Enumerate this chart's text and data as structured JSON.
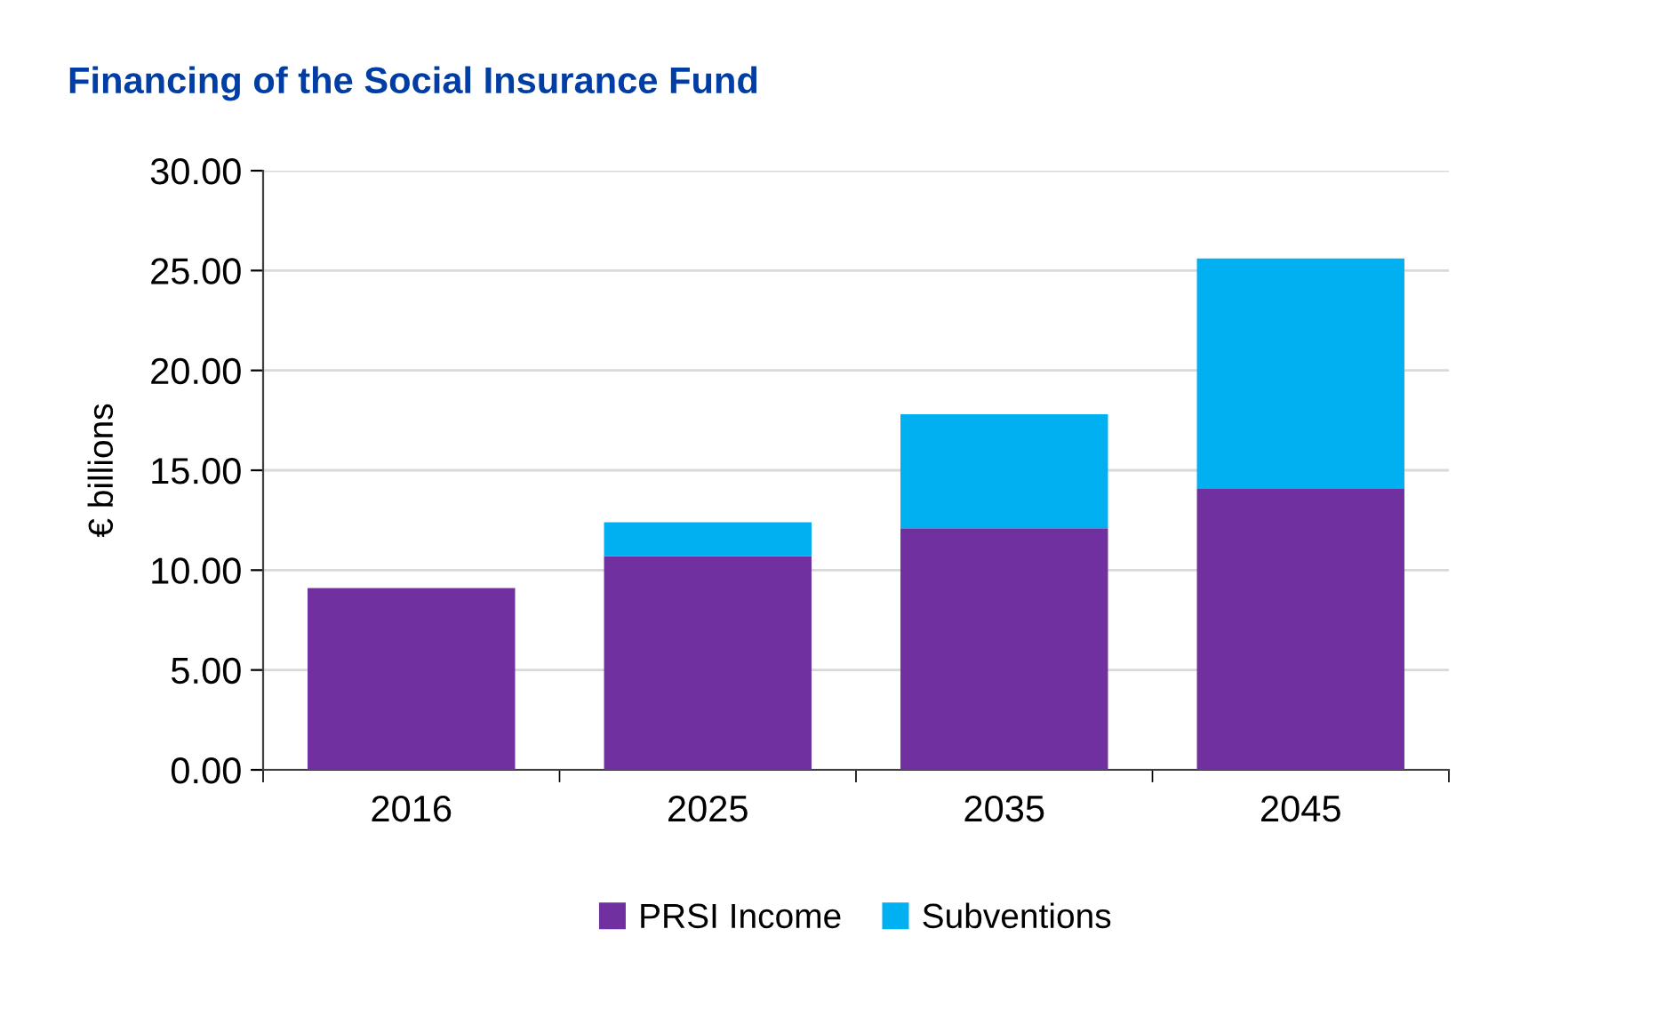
{
  "chart_data": {
    "type": "bar",
    "stacked": true,
    "title": "Financing of the Social Insurance Fund",
    "ylabel": "€ billions",
    "categories": [
      "2016",
      "2025",
      "2035",
      "2045"
    ],
    "series": [
      {
        "name": "PRSI Income",
        "color": "#7030a0",
        "values": [
          9.1,
          10.7,
          12.1,
          14.1
        ]
      },
      {
        "name": "Subventions",
        "color": "#00b0f0",
        "values": [
          null,
          1.7,
          5.7,
          11.5
        ]
      }
    ],
    "ylim": [
      0,
      30
    ],
    "yticks": [
      {
        "value": 0,
        "label": "0.00"
      },
      {
        "value": 5,
        "label": "5.00"
      },
      {
        "value": 10,
        "label": "10.00"
      },
      {
        "value": 15,
        "label": "15.00"
      },
      {
        "value": 20,
        "label": "20.00"
      },
      {
        "value": 25,
        "label": "25.00"
      },
      {
        "value": 30,
        "label": "30.00"
      }
    ],
    "grid": "y",
    "legend": "bottom"
  }
}
